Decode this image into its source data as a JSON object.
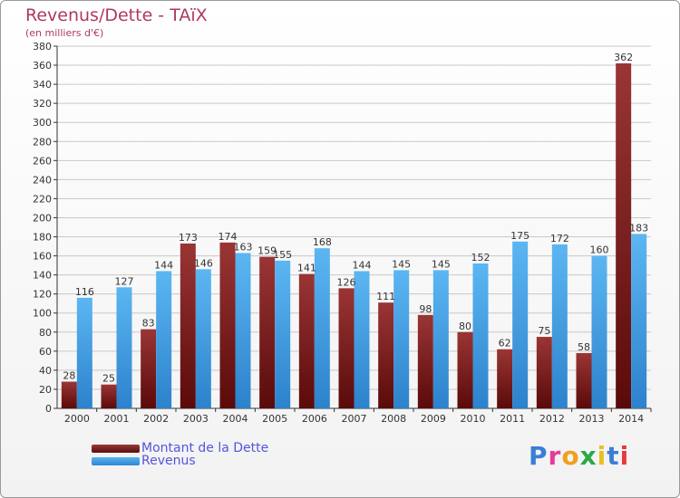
{
  "title": "Revenus/Dette - TAïX",
  "subtitle": "(en milliers d'€)",
  "chart_data": {
    "type": "bar",
    "categories": [
      "2000",
      "2001",
      "2002",
      "2003",
      "2004",
      "2005",
      "2006",
      "2007",
      "2008",
      "2009",
      "2010",
      "2011",
      "2012",
      "2013",
      "2014"
    ],
    "series": [
      {
        "name": "Montant de la Dette",
        "color": "#7a1f1f",
        "values": [
          28,
          25,
          83,
          173,
          174,
          159,
          141,
          126,
          111,
          98,
          80,
          62,
          75,
          58,
          362
        ]
      },
      {
        "name": "Revenus",
        "color": "#4aa3e6",
        "values": [
          116,
          127,
          144,
          146,
          163,
          155,
          168,
          144,
          145,
          145,
          152,
          175,
          172,
          160,
          183
        ]
      }
    ],
    "ylim": [
      0,
      380
    ],
    "yticks": [
      0,
      20,
      40,
      60,
      80,
      100,
      120,
      140,
      160,
      180,
      200,
      220,
      240,
      260,
      280,
      300,
      320,
      340,
      360,
      380
    ],
    "grid": true,
    "legend_position": "bottom-left"
  },
  "legend": {
    "debt_label": "Montant de la Dette",
    "revenue_label": "Revenus"
  },
  "logo": {
    "text": "Proxiti",
    "letter_colors": [
      "#3a7fd6",
      "#e83a9a",
      "#f0a020",
      "#2aa84a",
      "#e8c020",
      "#3a7fd6",
      "#e83a3a"
    ]
  }
}
